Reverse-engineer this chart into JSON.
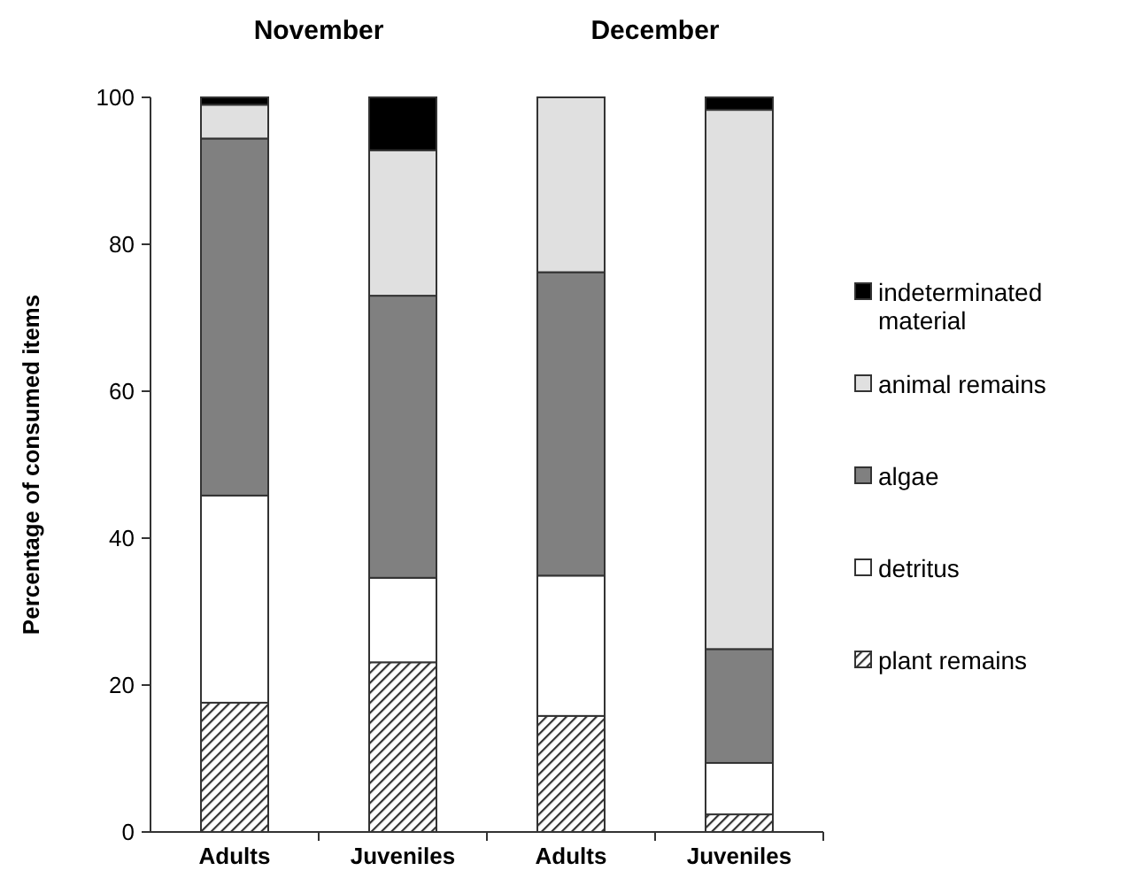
{
  "chart_data": {
    "type": "bar",
    "stacked": true,
    "ylabel": "Percentage of consumed items",
    "categories": [
      "Adults",
      "Juveniles",
      "Adults",
      "Juveniles"
    ],
    "annotations": [
      "November",
      "December"
    ],
    "series": [
      {
        "name": "plant remains",
        "color": "#333333",
        "values": [
          17.6,
          23.1,
          15.8,
          2.4
        ]
      },
      {
        "name": "detritus",
        "color": "#ffffff",
        "values": [
          28.2,
          11.5,
          19.1,
          7
        ]
      },
      {
        "name": "algae",
        "color": "#808080",
        "values": [
          48.6,
          38.4,
          41.3,
          15.5
        ]
      },
      {
        "name": "animal remains",
        "color": "#e0e0e0",
        "values": [
          4.6,
          19.8,
          23.8,
          73.4
        ]
      },
      {
        "name": "indeterminated material",
        "color": "#000000",
        "values": [
          1,
          7.2,
          0,
          1.7
        ]
      }
    ],
    "ylim": [
      0,
      100
    ],
    "yticks": [
      0,
      20,
      40,
      60,
      80,
      100
    ],
    "grid": false,
    "legend": "right"
  }
}
